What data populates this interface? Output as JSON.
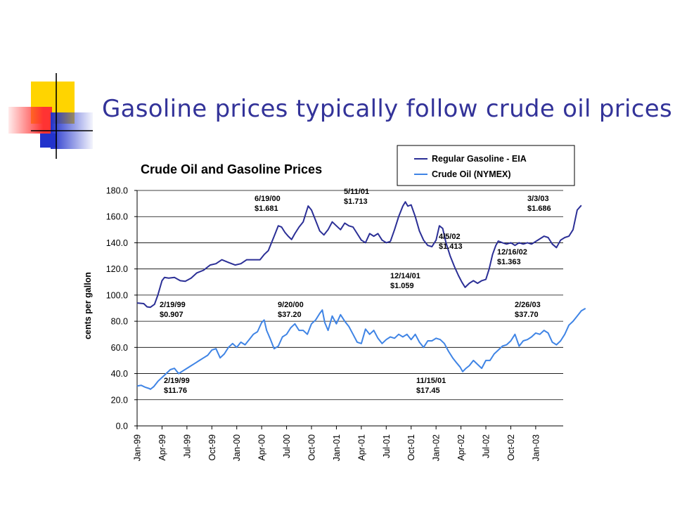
{
  "slide": {
    "title": "Gasoline prices typically follow crude oil prices"
  },
  "colors": {
    "title": "#333399",
    "gasoline": "#2B2F96",
    "crude": "#3F84E5",
    "deco_yellow": "#FFD400",
    "deco_blue": "#2233CC",
    "deco_red": "#FF3333"
  },
  "chart_data": {
    "type": "line",
    "title": "Crude Oil and Gasoline Prices",
    "xlabel": "",
    "ylabel": "cents per gallon",
    "ylim": [
      0,
      180
    ],
    "yticks": [
      "0.0",
      "20.0",
      "40.0",
      "60.0",
      "80.0",
      "100.0",
      "120.0",
      "140.0",
      "160.0",
      "180.0"
    ],
    "ytick_values": [
      0,
      20,
      40,
      60,
      80,
      100,
      120,
      140,
      160,
      180
    ],
    "grid": "horizontal",
    "legend_position": "top-right",
    "xticks": [
      "Jan-99",
      "Apr-99",
      "Jul-99",
      "Oct-99",
      "Jan-00",
      "Apr-00",
      "Jul-00",
      "Oct-00",
      "Jan-01",
      "Apr-01",
      "Jul-01",
      "Oct-01",
      "Jan-02",
      "Apr-02",
      "Jul-02",
      "Oct-02",
      "Jan-03"
    ],
    "x_range_months": [
      0,
      52
    ],
    "series": [
      {
        "name": "Regular Gasoline - EIA",
        "points": [
          [
            0,
            94
          ],
          [
            0.8,
            93.5
          ],
          [
            1.2,
            91
          ],
          [
            1.6,
            90.7
          ],
          [
            2.1,
            93
          ],
          [
            2.5,
            100
          ],
          [
            3.0,
            111
          ],
          [
            3.3,
            113.5
          ],
          [
            3.8,
            113
          ],
          [
            4.5,
            113.5
          ],
          [
            5.2,
            111
          ],
          [
            5.8,
            110.5
          ],
          [
            6.5,
            113
          ],
          [
            7.2,
            117
          ],
          [
            8.0,
            119
          ],
          [
            8.8,
            123
          ],
          [
            9.5,
            124
          ],
          [
            10.2,
            127
          ],
          [
            11.0,
            125
          ],
          [
            11.8,
            123
          ],
          [
            12.5,
            124
          ],
          [
            13.2,
            127
          ],
          [
            14.0,
            127
          ],
          [
            14.8,
            127
          ],
          [
            15.3,
            131
          ],
          [
            15.8,
            134
          ],
          [
            16.5,
            145
          ],
          [
            17.0,
            153
          ],
          [
            17.4,
            152
          ],
          [
            17.8,
            148
          ],
          [
            18.2,
            145
          ],
          [
            18.6,
            142.5
          ],
          [
            19.0,
            147
          ],
          [
            19.5,
            152
          ],
          [
            20.0,
            156
          ],
          [
            20.3,
            162
          ],
          [
            20.6,
            168.1
          ],
          [
            21.0,
            165
          ],
          [
            21.5,
            157
          ],
          [
            22.0,
            149
          ],
          [
            22.5,
            146
          ],
          [
            23.0,
            150
          ],
          [
            23.5,
            156
          ],
          [
            24.0,
            153
          ],
          [
            24.5,
            150
          ],
          [
            25.0,
            155
          ],
          [
            25.5,
            153
          ],
          [
            26.0,
            152
          ],
          [
            26.5,
            147
          ],
          [
            27.0,
            142
          ],
          [
            27.5,
            140
          ],
          [
            28.0,
            147
          ],
          [
            28.5,
            145
          ],
          [
            29.0,
            147
          ],
          [
            29.5,
            142
          ],
          [
            30.0,
            140
          ],
          [
            30.5,
            141
          ],
          [
            31.0,
            150
          ],
          [
            31.5,
            160
          ],
          [
            32.0,
            168
          ],
          [
            32.3,
            171.3
          ],
          [
            32.6,
            168
          ],
          [
            33.0,
            169
          ],
          [
            33.5,
            160
          ],
          [
            34.0,
            149
          ],
          [
            34.5,
            142
          ],
          [
            35.0,
            138
          ],
          [
            35.5,
            137
          ],
          [
            36.0,
            142
          ],
          [
            36.4,
            153
          ],
          [
            36.8,
            151
          ],
          [
            37.2,
            140
          ],
          [
            37.7,
            130
          ],
          [
            38.2,
            122
          ],
          [
            38.7,
            115
          ],
          [
            39.1,
            110
          ],
          [
            39.5,
            105.9
          ],
          [
            40.0,
            109
          ],
          [
            40.5,
            111
          ],
          [
            41.0,
            109
          ],
          [
            41.5,
            111
          ],
          [
            42.0,
            112
          ],
          [
            42.4,
            120
          ],
          [
            42.8,
            131
          ],
          [
            43.2,
            138
          ],
          [
            43.5,
            141.3
          ],
          [
            44.0,
            140
          ],
          [
            44.5,
            139
          ],
          [
            45.0,
            140
          ],
          [
            45.5,
            138
          ],
          [
            46.0,
            140
          ],
          [
            46.5,
            139
          ],
          [
            47.0,
            140
          ],
          [
            47.5,
            139
          ],
          [
            48.0,
            141
          ],
          [
            48.5,
            143
          ],
          [
            49.0,
            145
          ],
          [
            49.5,
            144
          ],
          [
            50.0,
            139
          ],
          [
            50.5,
            136.3
          ],
          [
            51.0,
            142
          ],
          [
            51.5,
            144
          ],
          [
            52.0,
            145
          ],
          [
            52.5,
            150
          ],
          [
            53.0,
            165
          ],
          [
            53.5,
            168.6
          ]
        ]
      },
      {
        "name": "Crude Oil (NYMEX)",
        "points": [
          [
            0,
            30.5
          ],
          [
            0.5,
            31
          ],
          [
            1.0,
            29.5
          ],
          [
            1.5,
            28.5
          ],
          [
            1.6,
            28.0
          ],
          [
            2.0,
            30
          ],
          [
            2.5,
            34
          ],
          [
            3.0,
            37
          ],
          [
            3.5,
            40
          ],
          [
            4.0,
            43
          ],
          [
            4.5,
            44
          ],
          [
            5.0,
            40
          ],
          [
            5.5,
            42
          ],
          [
            6.0,
            44
          ],
          [
            6.5,
            46
          ],
          [
            7.0,
            48
          ],
          [
            7.5,
            50
          ],
          [
            8.0,
            52
          ],
          [
            8.5,
            54
          ],
          [
            9.0,
            58
          ],
          [
            9.5,
            59
          ],
          [
            10.0,
            52
          ],
          [
            10.5,
            55
          ],
          [
            11.0,
            60
          ],
          [
            11.5,
            63
          ],
          [
            12.0,
            60
          ],
          [
            12.5,
            64
          ],
          [
            13.0,
            62
          ],
          [
            13.5,
            66
          ],
          [
            14.0,
            70
          ],
          [
            14.5,
            72
          ],
          [
            15.0,
            79
          ],
          [
            15.3,
            81
          ],
          [
            15.6,
            73
          ],
          [
            16.0,
            67
          ],
          [
            16.5,
            59
          ],
          [
            17.0,
            61
          ],
          [
            17.5,
            68
          ],
          [
            18.0,
            70
          ],
          [
            18.5,
            75
          ],
          [
            19.0,
            78
          ],
          [
            19.5,
            73
          ],
          [
            20.0,
            73
          ],
          [
            20.5,
            70
          ],
          [
            21.0,
            78
          ],
          [
            21.5,
            81
          ],
          [
            22.0,
            86
          ],
          [
            22.3,
            88.6
          ],
          [
            22.6,
            79
          ],
          [
            23.0,
            73
          ],
          [
            23.5,
            84
          ],
          [
            24.0,
            78
          ],
          [
            24.5,
            85
          ],
          [
            25.0,
            80
          ],
          [
            25.5,
            76
          ],
          [
            26.0,
            70
          ],
          [
            26.5,
            64
          ],
          [
            27.0,
            63
          ],
          [
            27.5,
            74
          ],
          [
            28.0,
            70
          ],
          [
            28.5,
            73
          ],
          [
            29.0,
            67
          ],
          [
            29.5,
            63
          ],
          [
            30.0,
            66
          ],
          [
            30.5,
            68
          ],
          [
            31.0,
            67
          ],
          [
            31.5,
            70
          ],
          [
            32.0,
            68
          ],
          [
            32.5,
            70
          ],
          [
            33.0,
            66
          ],
          [
            33.5,
            70
          ],
          [
            34.0,
            64
          ],
          [
            34.5,
            60
          ],
          [
            35.0,
            65
          ],
          [
            35.5,
            65
          ],
          [
            36.0,
            67
          ],
          [
            36.5,
            66
          ],
          [
            37.0,
            63
          ],
          [
            37.5,
            57
          ],
          [
            38.0,
            52
          ],
          [
            38.5,
            48
          ],
          [
            38.9,
            45
          ],
          [
            39.2,
            41.5
          ],
          [
            39.6,
            44
          ],
          [
            40.0,
            46
          ],
          [
            40.5,
            50
          ],
          [
            41.0,
            47
          ],
          [
            41.5,
            44
          ],
          [
            42.0,
            50
          ],
          [
            42.5,
            50
          ],
          [
            43.0,
            55
          ],
          [
            43.5,
            58
          ],
          [
            44.0,
            61
          ],
          [
            44.5,
            62
          ],
          [
            45.0,
            65
          ],
          [
            45.5,
            70
          ],
          [
            46.0,
            61
          ],
          [
            46.5,
            65
          ],
          [
            47.0,
            66
          ],
          [
            47.5,
            68
          ],
          [
            48.0,
            71
          ],
          [
            48.5,
            70
          ],
          [
            49.0,
            73
          ],
          [
            49.5,
            71
          ],
          [
            50.0,
            64
          ],
          [
            50.5,
            62
          ],
          [
            51.0,
            65
          ],
          [
            51.5,
            70
          ],
          [
            52.0,
            77
          ],
          [
            52.5,
            80
          ],
          [
            53.0,
            84
          ],
          [
            53.5,
            88
          ],
          [
            54.0,
            89.8
          ]
        ]
      }
    ],
    "annotations": [
      {
        "date": "2/19/99",
        "value": "$0.907",
        "series": "Regular Gasoline - EIA"
      },
      {
        "date": "6/19/00",
        "value": "$1.681",
        "series": "Regular Gasoline - EIA"
      },
      {
        "date": "5/11/01",
        "value": "$1.713",
        "series": "Regular Gasoline - EIA"
      },
      {
        "date": "12/14/01",
        "value": "$1.059",
        "series": "Regular Gasoline - EIA"
      },
      {
        "date": "4/5/02",
        "value": "$1.413",
        "series": "Regular Gasoline - EIA"
      },
      {
        "date": "12/16/02",
        "value": "$1.363",
        "series": "Regular Gasoline - EIA"
      },
      {
        "date": "3/3/03",
        "value": "$1.686",
        "series": "Regular Gasoline - EIA"
      },
      {
        "date": "2/19/99",
        "value": "$11.76",
        "series": "Crude Oil (NYMEX)"
      },
      {
        "date": "9/20/00",
        "value": "$37.20",
        "series": "Crude Oil (NYMEX)"
      },
      {
        "date": "11/15/01",
        "value": "$17.45",
        "series": "Crude Oil (NYMEX)"
      },
      {
        "date": "2/26/03",
        "value": "$37.70",
        "series": "Crude Oil (NYMEX)"
      }
    ]
  }
}
